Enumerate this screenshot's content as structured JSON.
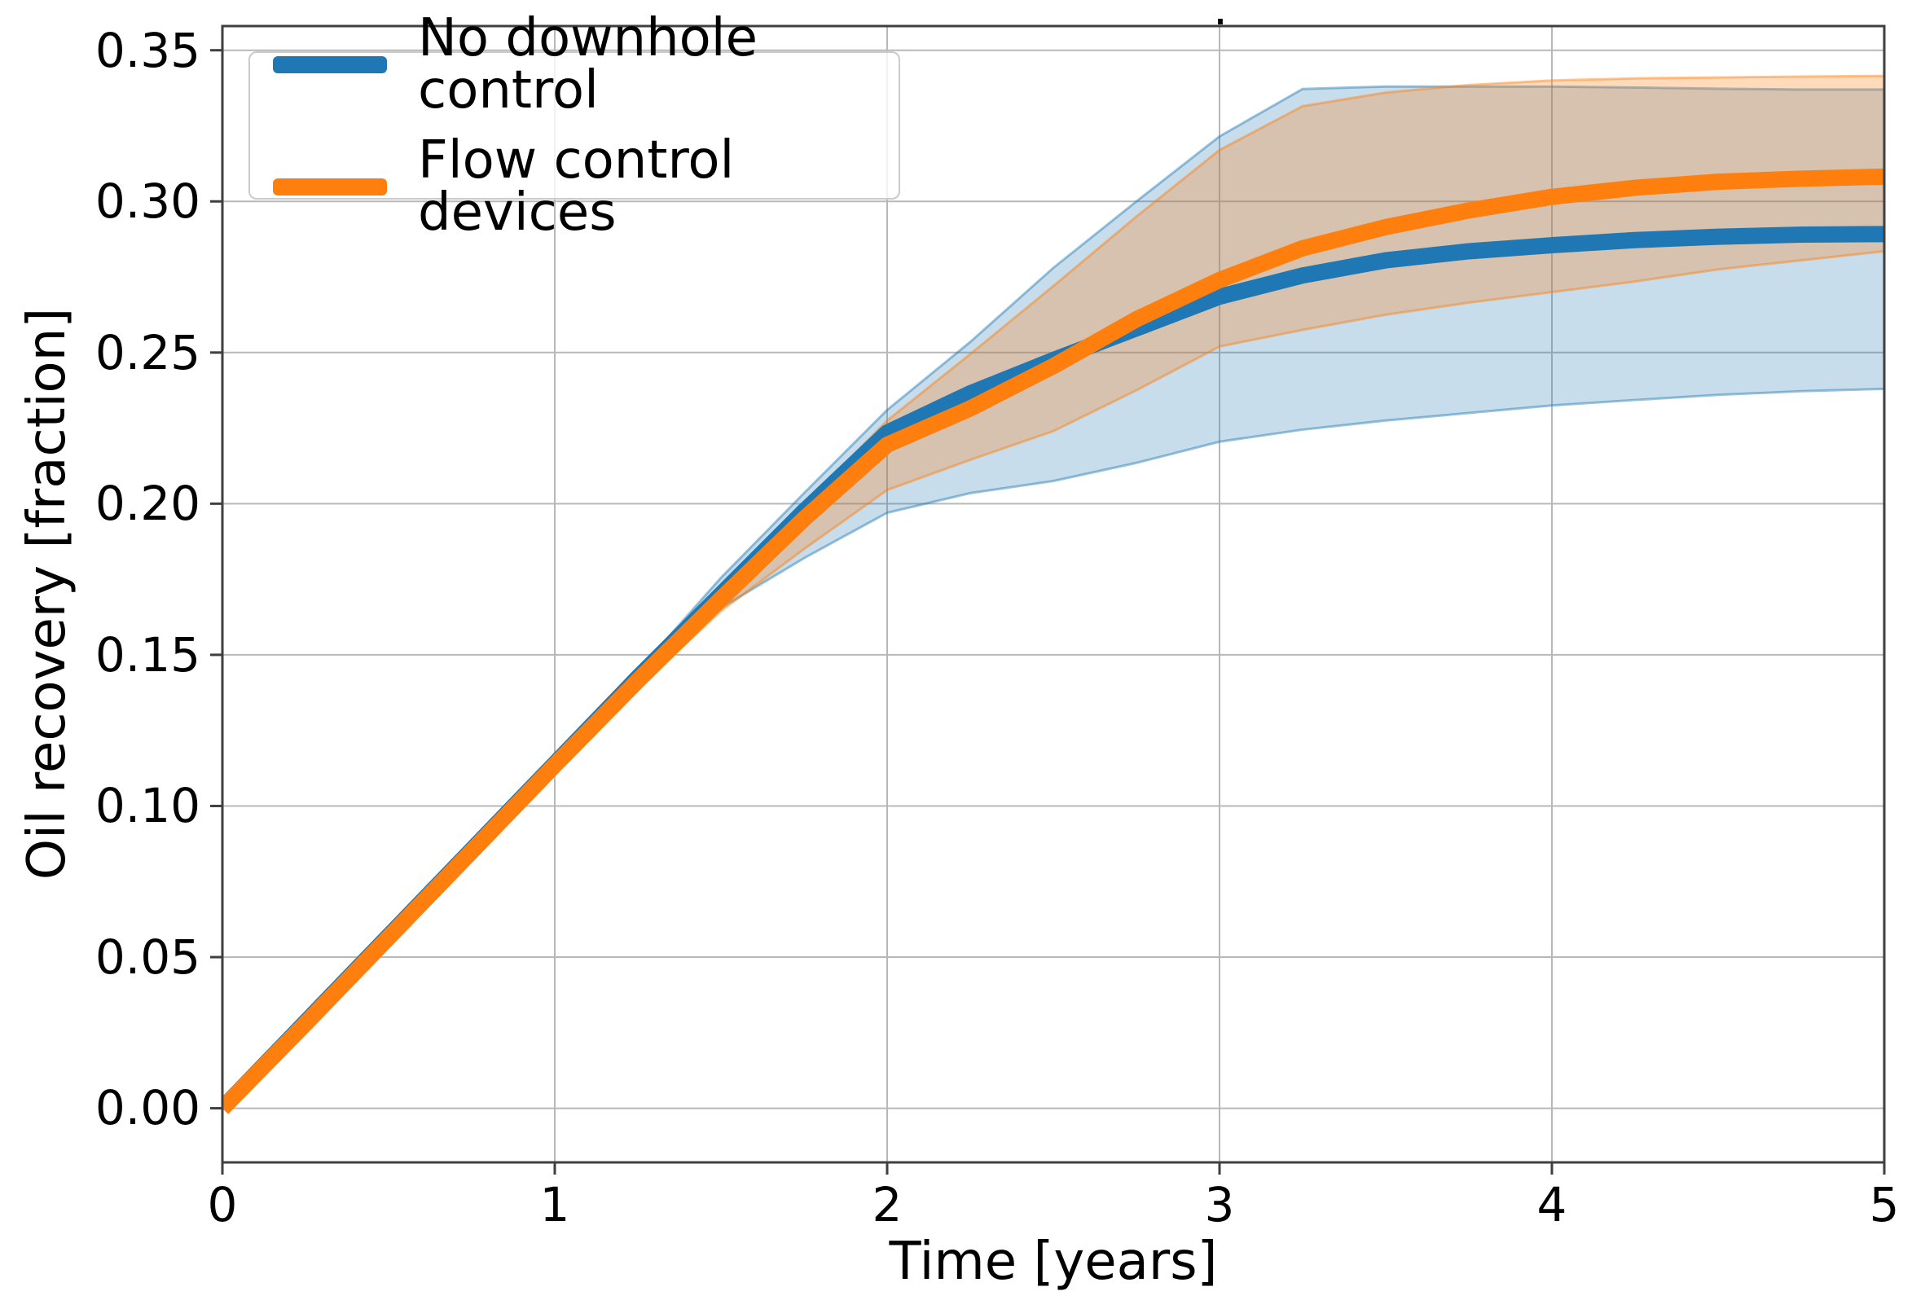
{
  "chart_data": {
    "type": "line",
    "title": ".",
    "xlabel": "Time [years]",
    "ylabel": "Oil recovery [fraction]",
    "xlim": [
      0,
      5
    ],
    "ylim": [
      -0.0179,
      0.358
    ],
    "grid": true,
    "legend_position": "upper left",
    "xtick_values": [
      0,
      1,
      2,
      3,
      4,
      5
    ],
    "xtick_labels": [
      "0",
      "1",
      "2",
      "3",
      "4",
      "5"
    ],
    "ytick_values": [
      0.35,
      0.3,
      0.25,
      0.2,
      0.15,
      0.1,
      0.05,
      0.0
    ],
    "ytick_labels": [
      "0.35",
      "0.30",
      "0.25",
      "0.20",
      "0.15",
      "0.10",
      "0.05",
      "0.00"
    ],
    "x": [
      0,
      0.25,
      0.5,
      0.75,
      1,
      1.25,
      1.5,
      1.75,
      2,
      2.25,
      2.5,
      2.75,
      3,
      3.25,
      3.5,
      3.75,
      4,
      4.25,
      4.5,
      4.75,
      5
    ],
    "series": [
      {
        "name": "No downhole control",
        "color": "#1f77b4",
        "band_alpha": 0.25,
        "values": [
          0,
          0.0285,
          0.057,
          0.0855,
          0.114,
          0.1425,
          0.17,
          0.1975,
          0.2235,
          0.2365,
          0.2475,
          0.258,
          0.2685,
          0.2755,
          0.2805,
          0.2835,
          0.2855,
          0.2872,
          0.2883,
          0.289,
          0.2892
        ],
        "band_low": [
          0,
          0.0285,
          0.057,
          0.0855,
          0.1135,
          0.1405,
          0.1655,
          0.182,
          0.197,
          0.2035,
          0.2075,
          0.2135,
          0.2205,
          0.2245,
          0.2275,
          0.23,
          0.2325,
          0.2343,
          0.236,
          0.2372,
          0.238
        ],
        "band_high": [
          0,
          0.0285,
          0.057,
          0.0855,
          0.1155,
          0.1445,
          0.1755,
          0.2035,
          0.231,
          0.2535,
          0.278,
          0.3,
          0.3215,
          0.3372,
          0.338,
          0.338,
          0.338,
          0.3377,
          0.3373,
          0.337,
          0.337
        ]
      },
      {
        "name": "Flow control devices",
        "color": "#ff7f0e",
        "band_alpha": 0.28,
        "values": [
          0,
          0.028,
          0.0565,
          0.085,
          0.1135,
          0.1415,
          0.1685,
          0.195,
          0.2195,
          0.2315,
          0.2455,
          0.261,
          0.274,
          0.2845,
          0.2915,
          0.297,
          0.3015,
          0.3045,
          0.3065,
          0.3075,
          0.3082
        ],
        "band_low": [
          0,
          0.028,
          0.0565,
          0.085,
          0.1125,
          0.139,
          0.1645,
          0.185,
          0.2045,
          0.2145,
          0.224,
          0.2375,
          0.252,
          0.2575,
          0.2625,
          0.2665,
          0.27,
          0.2735,
          0.2775,
          0.2805,
          0.2835
        ],
        "band_high": [
          0,
          0.028,
          0.0565,
          0.085,
          0.1145,
          0.1435,
          0.172,
          0.1995,
          0.2275,
          0.2495,
          0.272,
          0.295,
          0.317,
          0.3315,
          0.336,
          0.3385,
          0.34,
          0.3407,
          0.341,
          0.3413,
          0.3415
        ]
      }
    ],
    "style": {
      "grid_color": "#b8b8b8",
      "spine_color": "#3f3f3f",
      "text_color": "#000000",
      "line_width": 20
    }
  }
}
